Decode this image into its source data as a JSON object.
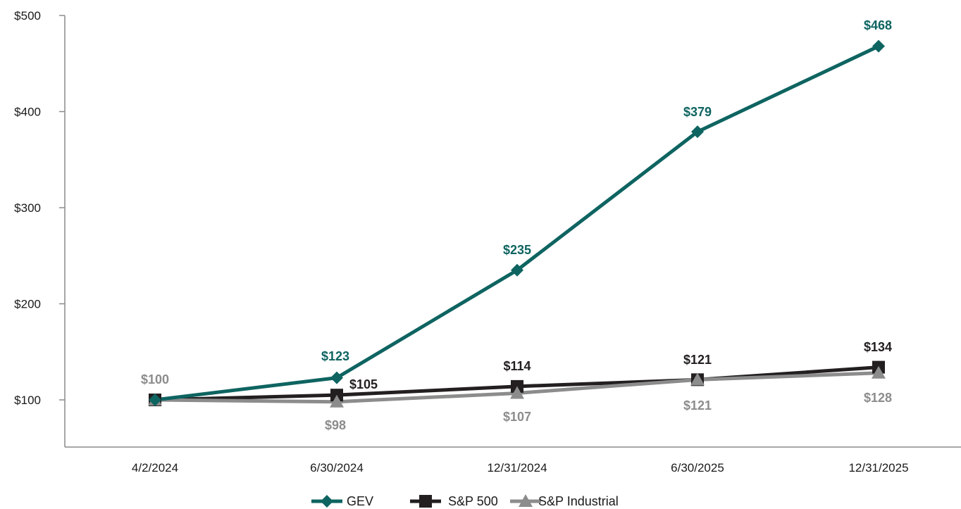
{
  "chart_data": {
    "type": "line",
    "categories": [
      "4/2/2024",
      "6/30/2024",
      "12/31/2024",
      "6/30/2025",
      "12/31/2025"
    ],
    "y_ticks": [
      "$100",
      "$200",
      "$300",
      "$400",
      "$500"
    ],
    "ylim": [
      50,
      500
    ],
    "grid": false,
    "legend_position": "bottom-center",
    "series": [
      {
        "name": "GEV",
        "values": [
          100,
          123,
          235,
          379,
          468
        ],
        "labels": [
          "",
          "$123",
          "$235",
          "$379",
          "$468"
        ],
        "color": "#0e6461",
        "marker": "diamond"
      },
      {
        "name": "S&P 500",
        "values": [
          100,
          105,
          114,
          121,
          134
        ],
        "labels": [
          "",
          "$105",
          "$114",
          "$121",
          "$134"
        ],
        "color": "#231f20",
        "marker": "square"
      },
      {
        "name": "S&P Industrial",
        "values": [
          100,
          98,
          107,
          121,
          128
        ],
        "labels": [
          "$100",
          "$98",
          "$107",
          "$121",
          "$128"
        ],
        "color": "#8c8c8c",
        "marker": "triangle"
      }
    ]
  }
}
